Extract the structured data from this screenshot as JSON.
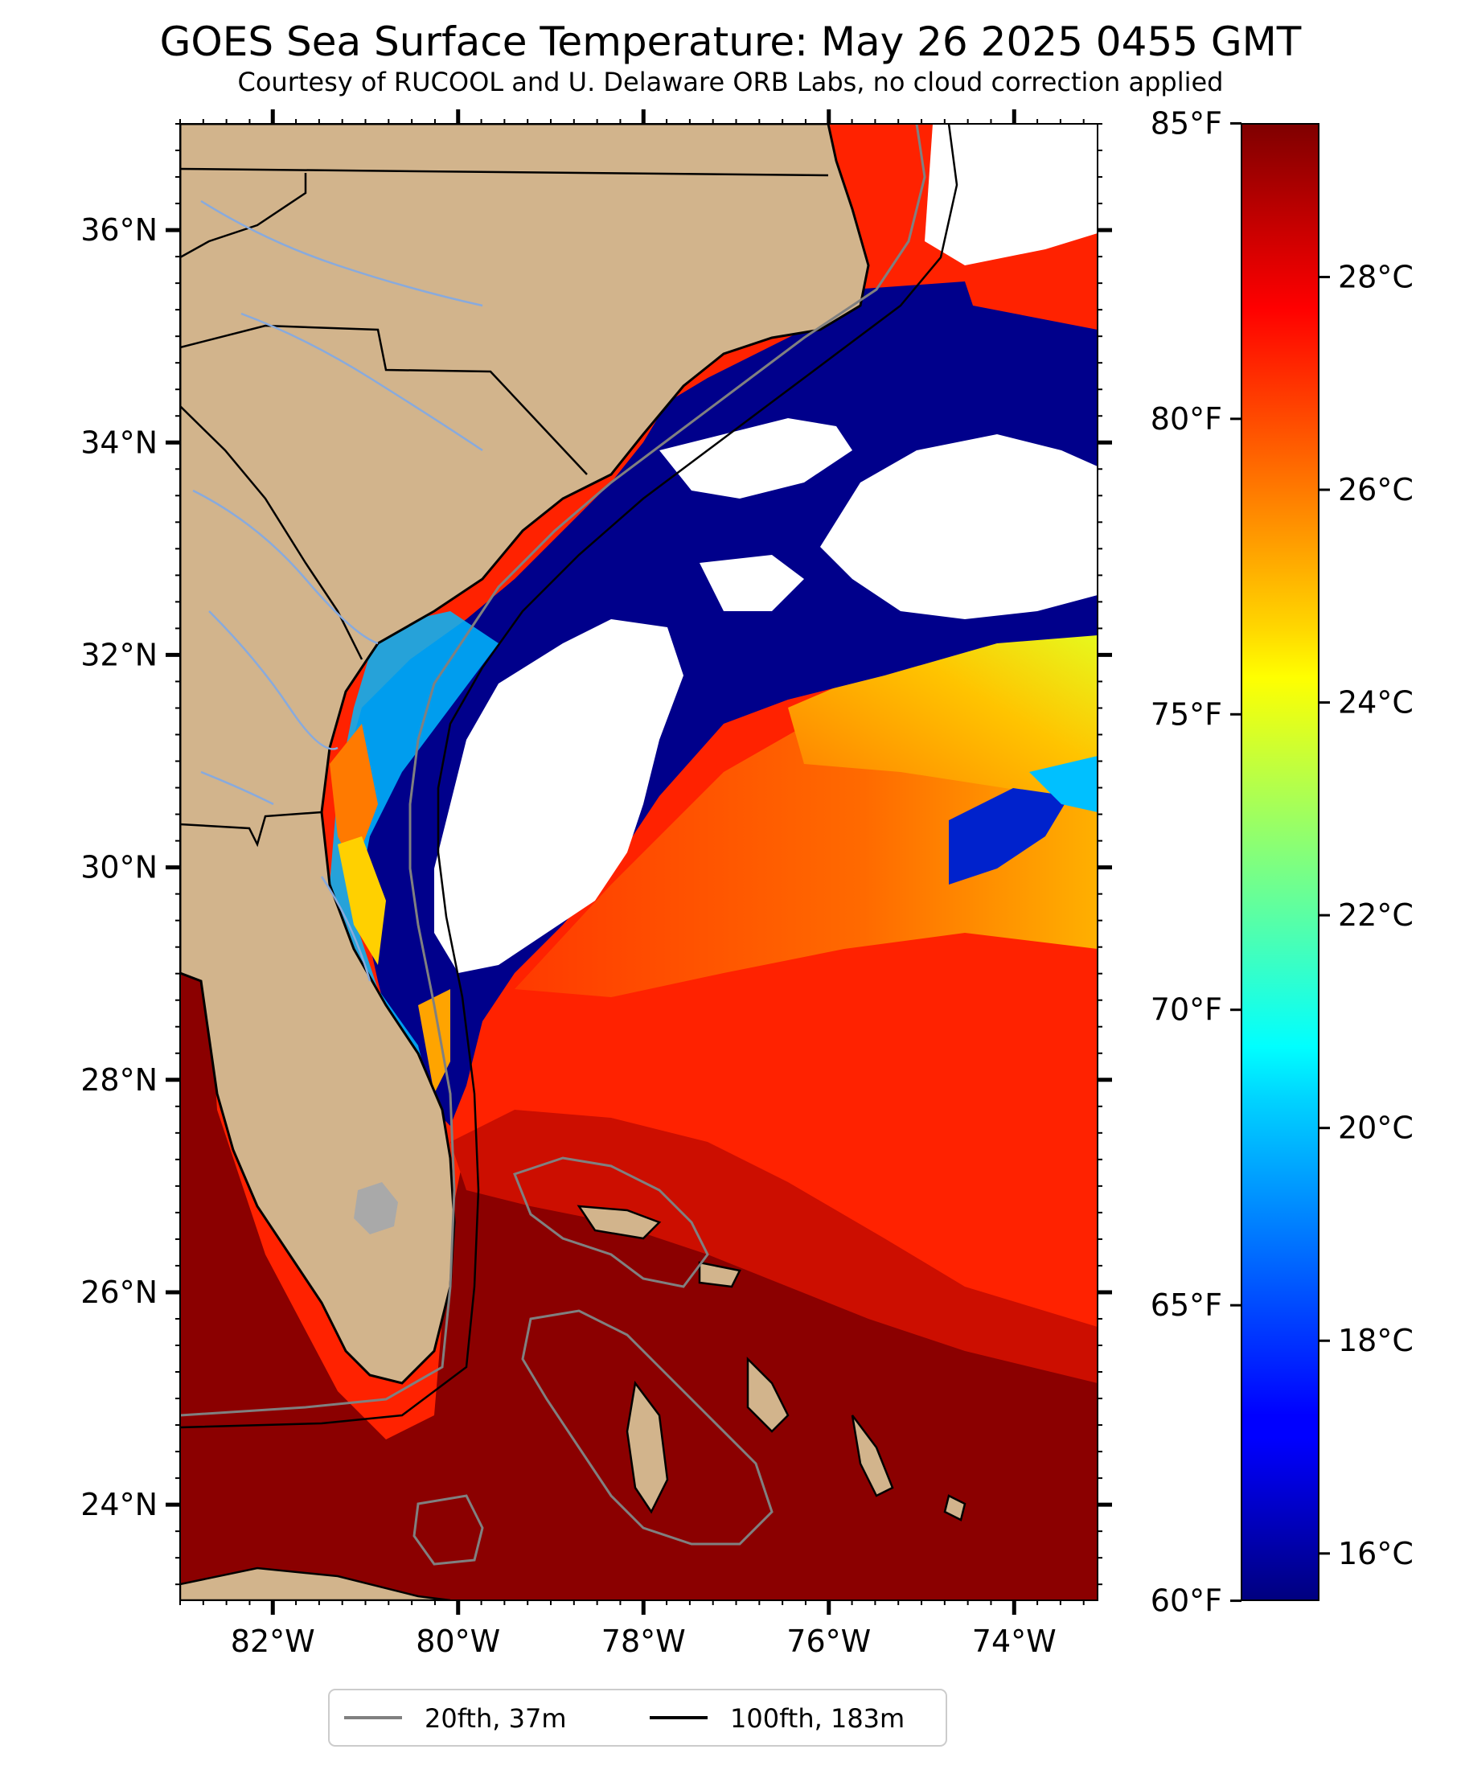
{
  "title": "GOES Sea Surface Temperature: May 26 2025 0455 GMT",
  "subtitle": "Courtesy of RUCOOL and U. Delaware ORB Labs, no cloud correction applied",
  "map": {
    "lon_range": [
      -83.0,
      -73.1
    ],
    "lat_range": [
      23.1,
      37.0
    ],
    "lat_ticks": [
      {
        "value": 24,
        "label": "24°N"
      },
      {
        "value": 26,
        "label": "26°N"
      },
      {
        "value": 28,
        "label": "28°N"
      },
      {
        "value": 30,
        "label": "30°N"
      },
      {
        "value": 32,
        "label": "32°N"
      },
      {
        "value": 34,
        "label": "34°N"
      },
      {
        "value": 36,
        "label": "36°N"
      }
    ],
    "lon_ticks": [
      {
        "value": -82,
        "label": "82°W"
      },
      {
        "value": -80,
        "label": "80°W"
      },
      {
        "value": -78,
        "label": "78°W"
      },
      {
        "value": -76,
        "label": "76°W"
      },
      {
        "value": -74,
        "label": "74°W"
      }
    ],
    "colors": {
      "land": "#d2b48c",
      "cloud": "#ffffff",
      "cold": "#00008b",
      "warm": "#ff2a00",
      "hot": "#8b0000",
      "river": "#88aadd"
    }
  },
  "colorbar": {
    "range_c": [
      15.56,
      29.44
    ],
    "colormap": "jet",
    "celsius_ticks": [
      {
        "value": 16,
        "label": "16°C"
      },
      {
        "value": 18,
        "label": "18°C"
      },
      {
        "value": 20,
        "label": "20°C"
      },
      {
        "value": 22,
        "label": "22°C"
      },
      {
        "value": 24,
        "label": "24°C"
      },
      {
        "value": 26,
        "label": "26°C"
      },
      {
        "value": 28,
        "label": "28°C"
      }
    ],
    "fahrenheit_ticks": [
      {
        "value": 60,
        "label": "60°F"
      },
      {
        "value": 65,
        "label": "65°F"
      },
      {
        "value": 70,
        "label": "70°F"
      },
      {
        "value": 75,
        "label": "75°F"
      },
      {
        "value": 80,
        "label": "80°F"
      },
      {
        "value": 85,
        "label": "85°F"
      }
    ]
  },
  "legend": {
    "items": [
      {
        "label": "20fth, 37m",
        "color": "#808080"
      },
      {
        "label": "100fth, 183m",
        "color": "#000000"
      }
    ]
  }
}
